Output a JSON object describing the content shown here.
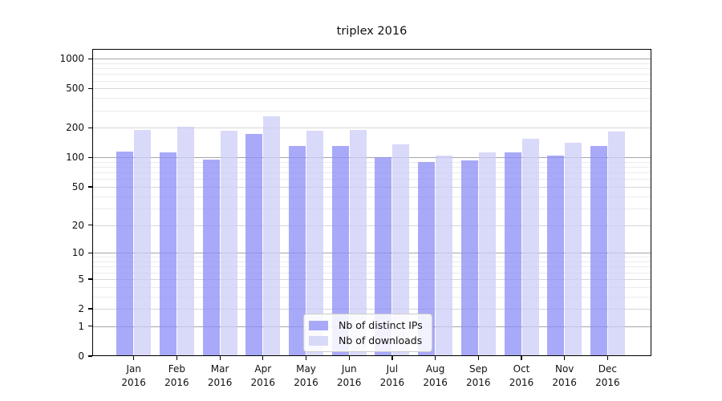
{
  "title": "triplex 2016",
  "colors": {
    "ips_bar_base": "#8c8cf7",
    "downloads_bar_base": "#ccccf7",
    "bar_alpha": 0.75,
    "grid_major": "#a6a6a6",
    "grid_mid": "#d6d6d6",
    "grid_minor": "#ebebeb",
    "axis_spine": "#000000",
    "background": "#ffffff"
  },
  "legend": {
    "entries": [
      {
        "label": "Nb of distinct IPs",
        "color_key": "ips_bar_base"
      },
      {
        "label": "Nb of downloads",
        "color_key": "downloads_bar_base"
      }
    ]
  },
  "chart_data": {
    "type": "bar",
    "title": "triplex 2016",
    "categories": [
      "Jan 2016",
      "Feb 2016",
      "Mar 2016",
      "Apr 2016",
      "May 2016",
      "Jun 2016",
      "Jul 2016",
      "Aug 2016",
      "Sep 2016",
      "Oct 2016",
      "Nov 2016",
      "Dec 2016"
    ],
    "series": [
      {
        "name": "Nb of distinct IPs",
        "values": [
          114,
          112,
          95,
          174,
          131,
          130,
          101,
          89,
          93,
          112,
          104,
          131
        ]
      },
      {
        "name": "Nb of downloads",
        "values": [
          190,
          205,
          186,
          260,
          188,
          191,
          136,
          105,
          113,
          154,
          142,
          182
        ]
      }
    ],
    "xlabel": "",
    "ylabel": "",
    "yscale": "log1p",
    "ylim": [
      0,
      1250
    ],
    "yticks": [
      0,
      1,
      2,
      5,
      10,
      20,
      50,
      100,
      200,
      500,
      1000
    ],
    "major_yticks": [
      1,
      10,
      100,
      1000
    ],
    "minor_yticks": [
      3,
      4,
      6,
      7,
      8,
      9,
      30,
      40,
      60,
      70,
      80,
      90,
      300,
      400,
      600,
      700,
      800,
      900
    ],
    "grid": true,
    "legend_position": "lower center"
  }
}
